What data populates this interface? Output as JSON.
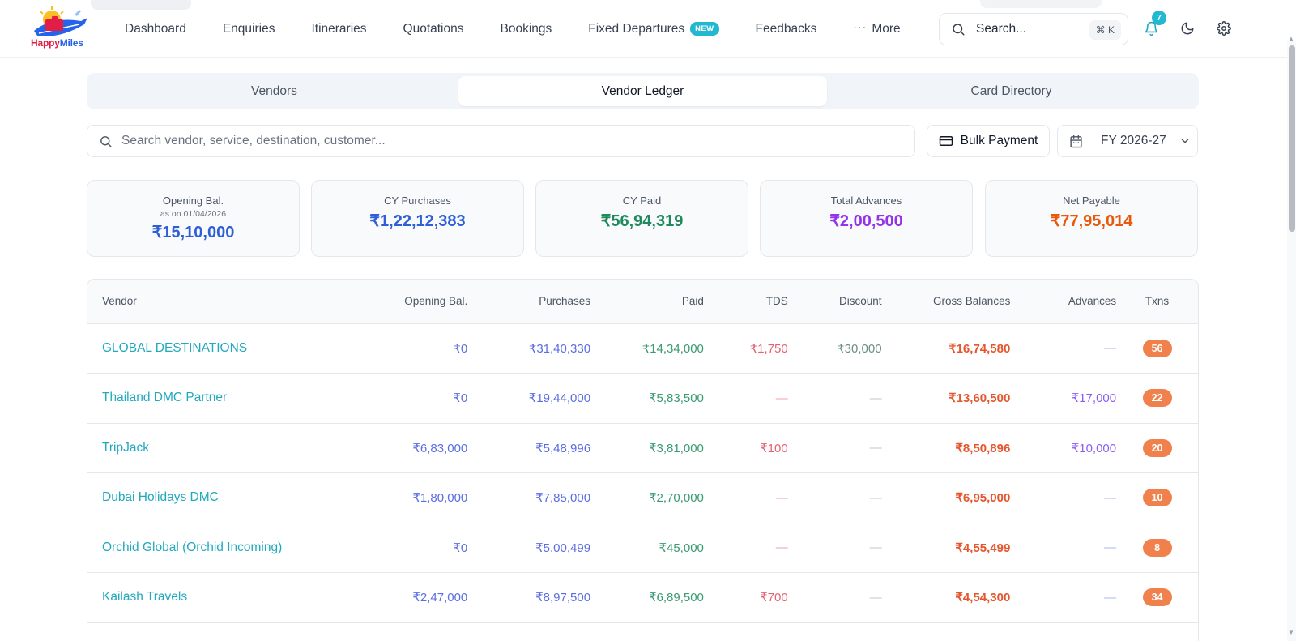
{
  "brand": {
    "name_part1": "Happy",
    "name_part2": "Miles",
    "logo_icon": "happymiles-logo"
  },
  "nav": {
    "items": [
      {
        "label": "Dashboard"
      },
      {
        "label": "Enquiries"
      },
      {
        "label": "Itineraries"
      },
      {
        "label": "Quotations"
      },
      {
        "label": "Bookings"
      },
      {
        "label": "Fixed Departures",
        "badge": "NEW"
      },
      {
        "label": "Feedbacks"
      }
    ],
    "more_label": "More",
    "more_icon": "ellipsis-icon"
  },
  "header": {
    "search_placeholder": "Search...",
    "search_shortcut": "⌘ K",
    "notification_count": "7",
    "icons": [
      "search-icon",
      "bell-icon",
      "moon-icon",
      "gear-icon"
    ]
  },
  "tabs": [
    {
      "label": "Vendors",
      "active": false
    },
    {
      "label": "Vendor Ledger",
      "active": true
    },
    {
      "label": "Card Directory",
      "active": false
    }
  ],
  "toolbar": {
    "search_placeholder": "Search vendor, service, destination, customer...",
    "bulk_payment_label": "Bulk Payment",
    "fiscal_year": "FY 2026-27"
  },
  "summary": {
    "opening": {
      "label": "Opening Bal.",
      "sub": "as on 01/04/2026",
      "value": "₹15,10,000",
      "color": "#2f5fd6"
    },
    "purchases": {
      "label": "CY Purchases",
      "value": "₹1,22,12,383",
      "color": "#2f5fd6"
    },
    "paid": {
      "label": "CY Paid",
      "value": "₹56,94,319",
      "color": "#1f8a5c"
    },
    "advances": {
      "label": "Total Advances",
      "value": "₹2,00,500",
      "color": "#9333ea"
    },
    "net": {
      "label": "Net Payable",
      "value": "₹77,95,014",
      "color": "#ea580c"
    }
  },
  "table": {
    "columns": {
      "vendor": "Vendor",
      "opening": "Opening Bal.",
      "purchases": "Purchases",
      "paid": "Paid",
      "tds": "TDS",
      "discount": "Discount",
      "gross": "Gross Balances",
      "advances": "Advances",
      "txns": "Txns"
    },
    "rows": [
      {
        "vendor": "GLOBAL DESTINATIONS",
        "opening": "₹0",
        "purchases": "₹31,40,330",
        "paid": "₹14,34,000",
        "tds": "₹1,750",
        "discount": "₹30,000",
        "gross": "₹16,74,580",
        "advances": "—",
        "txns": "56"
      },
      {
        "vendor": "Thailand DMC Partner",
        "opening": "₹0",
        "purchases": "₹19,44,000",
        "paid": "₹5,83,500",
        "tds": "—",
        "discount": "—",
        "gross": "₹13,60,500",
        "advances": "₹17,000",
        "txns": "22"
      },
      {
        "vendor": "TripJack",
        "opening": "₹6,83,000",
        "purchases": "₹5,48,996",
        "paid": "₹3,81,000",
        "tds": "₹100",
        "discount": "—",
        "gross": "₹8,50,896",
        "advances": "₹10,000",
        "txns": "20"
      },
      {
        "vendor": "Dubai Holidays DMC",
        "opening": "₹1,80,000",
        "purchases": "₹7,85,000",
        "paid": "₹2,70,000",
        "tds": "—",
        "discount": "—",
        "gross": "₹6,95,000",
        "advances": "—",
        "txns": "10"
      },
      {
        "vendor": "Orchid Global (Orchid Incoming)",
        "opening": "₹0",
        "purchases": "₹5,00,499",
        "paid": "₹45,000",
        "tds": "—",
        "discount": "—",
        "gross": "₹4,55,499",
        "advances": "—",
        "txns": "8"
      },
      {
        "vendor": "Kailash Travels",
        "opening": "₹2,47,000",
        "purchases": "₹8,97,500",
        "paid": "₹6,89,500",
        "tds": "₹700",
        "discount": "—",
        "gross": "₹4,54,300",
        "advances": "—",
        "txns": "34"
      }
    ]
  }
}
